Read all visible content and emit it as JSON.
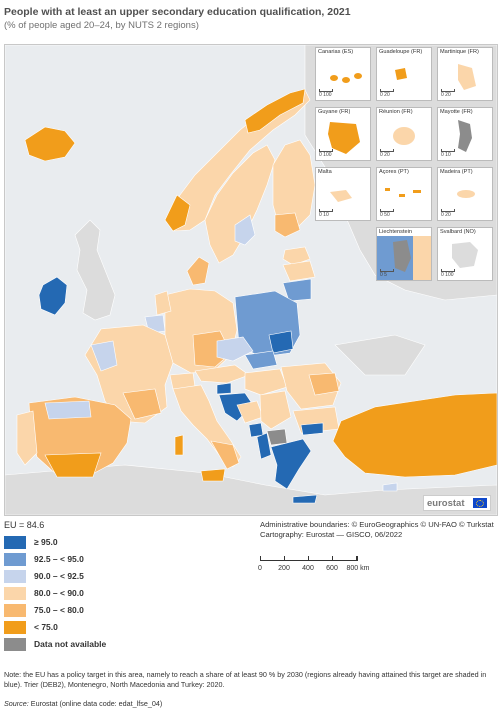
{
  "header": {
    "title": "People with at least an upper secondary education qualification, 2021",
    "subtitle": "(% of people aged 20–24, by NUTS 2 regions)"
  },
  "colors": {
    "very_high": "#2469b3",
    "high": "#6f9bd1",
    "mid_high": "#c6d4ec",
    "mid": "#fbd6aa",
    "low": "#f8b970",
    "very_low": "#f19d1b",
    "na": "#8c8c8c",
    "sea": "#e9ecef",
    "non_eu_land": "#dcdcdc"
  },
  "insets": [
    {
      "name": "Canarias (ES)",
      "scale": "0  100"
    },
    {
      "name": "Guadeloupe (FR)",
      "scale": "0  20"
    },
    {
      "name": "Martinique (FR)",
      "scale": "0  20"
    },
    {
      "name": "Guyane (FR)",
      "scale": "0  100"
    },
    {
      "name": "Réunion (FR)",
      "scale": "0  20"
    },
    {
      "name": "Mayotte (FR)",
      "scale": "0  10"
    },
    {
      "name": "Malta",
      "scale": "0  10"
    },
    {
      "name": "Açores (PT)",
      "scale": "0  50"
    },
    {
      "name": "Madeira (PT)",
      "scale": "0  20"
    },
    {
      "name": "Liechtenstein",
      "scale": "0  5"
    },
    {
      "name": "Svalbard (NO)",
      "scale": "0  100"
    }
  ],
  "logo": {
    "text": "eurostat"
  },
  "legend": {
    "eu_value": "EU = 84.6",
    "items": [
      {
        "label": "≥ 95.0",
        "color": "#2469b3"
      },
      {
        "label": "92.5 – < 95.0",
        "color": "#6f9bd1"
      },
      {
        "label": "90.0 – < 92.5",
        "color": "#c6d4ec"
      },
      {
        "label": "80.0 – < 90.0",
        "color": "#fbd6aa"
      },
      {
        "label": "75.0 – < 80.0",
        "color": "#f8b970"
      },
      {
        "label": "< 75.0",
        "color": "#f19d1b"
      },
      {
        "label": "Data not available",
        "color": "#8c8c8c"
      }
    ]
  },
  "credits": {
    "line1": "Administrative boundaries: © EuroGeographics © UN-FAO © Turkstat",
    "line2": "Cartography: Eurostat — GISCO, 06/2022"
  },
  "scalebar": {
    "ticks": [
      "0",
      "200",
      "400",
      "600",
      "800 km"
    ]
  },
  "note": "Note: the EU has a policy target in this area, namely to reach a share of at least 90 % by 2030 (regions already having attained this target are shaded in blue). Trier (DEB2), Montenegro, North Macedonia and Turkey: 2020.",
  "source": {
    "prefix": "Source:",
    "text": " Eurostat (online data code: edat_lfse_04)"
  }
}
